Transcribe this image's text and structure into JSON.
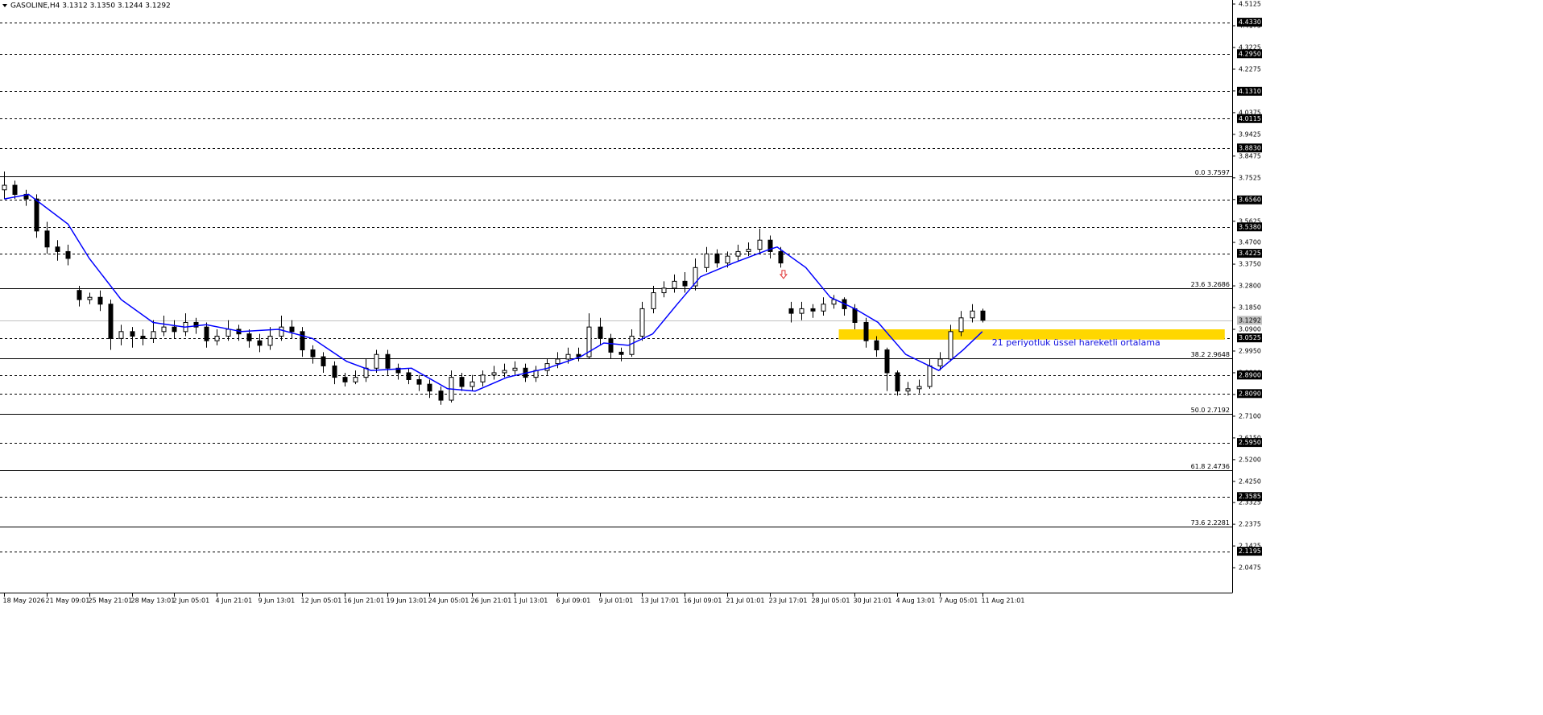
{
  "chart_data": {
    "type": "candlestick",
    "title": "GASOLINE,H4  3.1312 3.1350 3.1244 3.1292",
    "xlim": [
      -0.4,
      115.5
    ],
    "ylim": [
      1.9386,
      4.5301
    ],
    "xticks": [
      {
        "value": 0,
        "label": "18 May 2026"
      },
      {
        "value": 4,
        "label": "21 May 09:01"
      },
      {
        "value": 8,
        "label": "25 May 21:01"
      },
      {
        "value": 12,
        "label": "28 May 13:01"
      },
      {
        "value": 16,
        "label": "2 Jun 05:01"
      },
      {
        "value": 20,
        "label": "4 Jun 21:01"
      },
      {
        "value": 24,
        "label": "9 Jun 13:01"
      },
      {
        "value": 28,
        "label": "12 Jun 05:01"
      },
      {
        "value": 32,
        "label": "16 Jun 21:01"
      },
      {
        "value": 36,
        "label": "19 Jun 13:01"
      },
      {
        "value": 40,
        "label": "24 Jun 05:01"
      },
      {
        "value": 44,
        "label": "26 Jun 21:01"
      },
      {
        "value": 48,
        "label": "1 Jul 13:01"
      },
      {
        "value": 52,
        "label": "6 Jul 09:01"
      },
      {
        "value": 56,
        "label": "9 Jul 01:01"
      },
      {
        "value": 60,
        "label": "13 Jul 17:01"
      },
      {
        "value": 64,
        "label": "16 Jul 09:01"
      },
      {
        "value": 68,
        "label": "21 Jul 01:01"
      },
      {
        "value": 72,
        "label": "23 Jul 17:01"
      },
      {
        "value": 76,
        "label": "28 Jul 05:01"
      },
      {
        "value": 80,
        "label": "30 Jul 21:01"
      },
      {
        "value": 84,
        "label": "4 Aug 13:01"
      },
      {
        "value": 88,
        "label": "7 Aug 05:01"
      },
      {
        "value": 92,
        "label": "11 Aug 21:01"
      }
    ],
    "yticks": [
      4.5125,
      4.4175,
      4.3225,
      4.2275,
      4.1325,
      4.0375,
      3.9425,
      3.8475,
      3.7525,
      3.6575,
      3.5625,
      {
        "value": 3.47,
        "label": "3.4700"
      },
      {
        "value": 3.375,
        "label": "3.3750"
      },
      {
        "value": 3.28,
        "label": "3.2800"
      },
      {
        "value": 3.185,
        "label": "3.1850"
      },
      {
        "value": 3.09,
        "label": "3.0900"
      },
      {
        "value": 2.995,
        "label": "2.9950"
      },
      {
        "value": 2.9,
        "label": "2.9000"
      },
      {
        "value": 2.805,
        "label": "2.8050"
      },
      {
        "value": 2.71,
        "label": "2.7100"
      },
      {
        "value": 2.615,
        "label": "2.6150"
      },
      {
        "value": 2.52,
        "label": "2.5200"
      },
      {
        "value": 2.425,
        "label": "2.4250"
      },
      2.3325,
      2.2375,
      2.1425,
      2.0475
    ],
    "open": [
      3.7,
      3.72,
      3.68,
      3.66,
      3.52,
      3.45,
      3.43,
      3.26,
      3.22,
      3.23,
      3.2,
      3.05,
      3.08,
      3.06,
      3.05,
      3.08,
      3.1,
      3.08,
      3.12,
      3.1,
      3.04,
      3.06,
      3.09,
      3.07,
      3.04,
      3.02,
      3.06,
      3.1,
      3.08,
      3.0,
      2.97,
      2.93,
      2.88,
      2.86,
      2.88,
      2.92,
      2.98,
      2.92,
      2.9,
      2.87,
      2.85,
      2.82,
      2.78,
      2.88,
      2.84,
      2.86,
      2.89,
      2.9,
      2.91,
      2.92,
      2.88,
      2.91,
      2.94,
      2.96,
      2.98,
      2.97,
      3.1,
      3.05,
      2.99,
      2.98,
      3.06,
      3.18,
      3.25,
      3.27,
      3.3,
      3.28,
      3.36,
      3.42,
      3.38,
      3.41,
      3.43,
      3.44,
      3.48,
      3.43,
      3.18,
      3.16,
      3.18,
      3.17,
      3.2,
      3.22,
      3.18,
      3.12,
      3.04,
      3.0,
      2.9,
      2.82,
      2.83,
      2.84,
      2.93,
      2.96,
      3.08,
      3.14,
      3.17
    ],
    "high": [
      3.78,
      3.74,
      3.7,
      3.68,
      3.56,
      3.48,
      3.46,
      3.28,
      3.25,
      3.26,
      3.22,
      3.11,
      3.1,
      3.09,
      3.13,
      3.15,
      3.13,
      3.16,
      3.14,
      3.12,
      3.09,
      3.13,
      3.11,
      3.09,
      3.07,
      3.1,
      3.15,
      3.13,
      3.1,
      3.02,
      2.99,
      2.95,
      2.9,
      2.91,
      2.96,
      3.0,
      3.0,
      2.94,
      2.92,
      2.89,
      2.87,
      2.84,
      2.91,
      2.9,
      2.89,
      2.91,
      2.93,
      2.94,
      2.95,
      2.94,
      2.93,
      2.96,
      2.99,
      3.01,
      3.01,
      3.16,
      3.14,
      3.07,
      3.01,
      3.09,
      3.21,
      3.28,
      3.3,
      3.33,
      3.34,
      3.4,
      3.45,
      3.44,
      3.43,
      3.46,
      3.47,
      3.53,
      3.5,
      3.45,
      3.21,
      3.21,
      3.2,
      3.23,
      3.24,
      3.23,
      3.2,
      3.14,
      3.06,
      3.01,
      2.91,
      2.86,
      2.87,
      2.96,
      2.99,
      3.11,
      3.17,
      3.2,
      3.18
    ],
    "low": [
      3.66,
      3.66,
      3.63,
      3.49,
      3.42,
      3.39,
      3.37,
      3.19,
      3.2,
      3.17,
      3.0,
      3.02,
      3.01,
      3.02,
      3.03,
      3.06,
      3.05,
      3.06,
      3.07,
      3.01,
      3.02,
      3.04,
      3.04,
      3.01,
      2.99,
      3.0,
      3.04,
      3.05,
      2.97,
      2.94,
      2.9,
      2.85,
      2.84,
      2.85,
      2.86,
      2.9,
      2.89,
      2.87,
      2.85,
      2.82,
      2.79,
      2.76,
      2.77,
      2.82,
      2.82,
      2.84,
      2.87,
      2.88,
      2.89,
      2.86,
      2.86,
      2.89,
      2.92,
      2.94,
      2.95,
      2.96,
      3.02,
      2.96,
      2.95,
      2.97,
      3.04,
      3.16,
      3.23,
      3.25,
      3.25,
      3.26,
      3.34,
      3.36,
      3.36,
      3.39,
      3.41,
      3.42,
      3.4,
      3.36,
      3.12,
      3.13,
      3.14,
      3.15,
      3.18,
      3.15,
      3.09,
      3.01,
      2.97,
      2.82,
      2.8,
      2.8,
      2.81,
      2.83,
      2.91,
      2.95,
      3.06,
      3.12,
      3.12
    ],
    "close": [
      3.72,
      3.68,
      3.66,
      3.52,
      3.45,
      3.43,
      3.4,
      3.22,
      3.23,
      3.2,
      3.05,
      3.08,
      3.06,
      3.05,
      3.08,
      3.1,
      3.08,
      3.12,
      3.1,
      3.04,
      3.06,
      3.09,
      3.07,
      3.04,
      3.02,
      3.06,
      3.1,
      3.08,
      3.0,
      2.97,
      2.93,
      2.88,
      2.86,
      2.88,
      2.92,
      2.98,
      2.92,
      2.9,
      2.87,
      2.85,
      2.82,
      2.78,
      2.88,
      2.84,
      2.86,
      2.89,
      2.9,
      2.91,
      2.92,
      2.88,
      2.91,
      2.94,
      2.96,
      2.98,
      2.97,
      3.1,
      3.05,
      2.99,
      2.98,
      3.06,
      3.18,
      3.25,
      3.27,
      3.3,
      3.28,
      3.36,
      3.42,
      3.38,
      3.41,
      3.43,
      3.44,
      3.48,
      3.43,
      3.38,
      3.16,
      3.18,
      3.17,
      3.2,
      3.22,
      3.18,
      3.12,
      3.04,
      3.0,
      2.9,
      2.82,
      2.83,
      2.84,
      2.93,
      2.96,
      3.08,
      3.14,
      3.17,
      3.13
    ],
    "series": [
      {
        "name": "21 periyotluk üssel hareketli ortalama",
        "color": "#0000ff",
        "x": [
          0,
          2.3,
          6,
          8,
          11,
          14,
          17,
          19,
          22.3,
          25.8,
          29,
          32.2,
          34.5,
          38.3,
          41.7,
          44.3,
          47.3,
          51.1,
          54.2,
          56.4,
          58.7,
          61,
          63.3,
          65.5,
          68.6,
          72,
          72.7,
          75.4,
          77.7,
          80,
          82.2,
          84.8,
          87.9,
          90.2,
          92
        ],
        "values": [
          3.66,
          3.68,
          3.55,
          3.4,
          3.22,
          3.12,
          3.1,
          3.11,
          3.08,
          3.09,
          3.05,
          2.95,
          2.91,
          2.92,
          2.83,
          2.82,
          2.88,
          2.92,
          2.97,
          3.03,
          3.02,
          3.07,
          3.2,
          3.32,
          3.38,
          3.44,
          3.45,
          3.36,
          3.23,
          3.18,
          3.12,
          2.98,
          2.91,
          3.0,
          3.08
        ]
      }
    ],
    "levels": [
      {
        "value": 4.433,
        "label": "4.4330"
      },
      {
        "value": 4.295,
        "label": "4.2950"
      },
      {
        "value": 4.131,
        "label": "4.1310"
      },
      4.0115,
      {
        "value": 3.883,
        "label": "3.8830"
      },
      {
        "value": 3.656,
        "label": "3.6560"
      },
      {
        "value": 3.538,
        "label": "3.5380"
      },
      3.4225,
      3.0525,
      {
        "value": 2.89,
        "label": "2.8900"
      },
      {
        "value": 2.809,
        "label": "2.8090"
      },
      {
        "value": 2.595,
        "label": "2.5950"
      },
      2.3585,
      2.1195
    ],
    "fib_levels": [
      {
        "value": 3.7597,
        "label": "0.0 3.7597"
      },
      {
        "value": 3.2686,
        "label": "23.6 3.2686"
      },
      {
        "value": 2.9648,
        "label": "38.2 2.9648"
      },
      {
        "value": 2.7192,
        "label": "50.0 2.7192"
      },
      {
        "value": 2.4736,
        "label": "61.8 2.4736"
      },
      {
        "value": 2.2281,
        "label": "73.6 2.2281"
      }
    ],
    "current_price": 3.1292,
    "zone": {
      "from": 3.045,
      "to": 3.09,
      "start": 78.5,
      "end": 114.8,
      "color": "#ffd700"
    },
    "signal": {
      "x": 73.3,
      "value": 3.33,
      "color": "#e03030"
    }
  }
}
